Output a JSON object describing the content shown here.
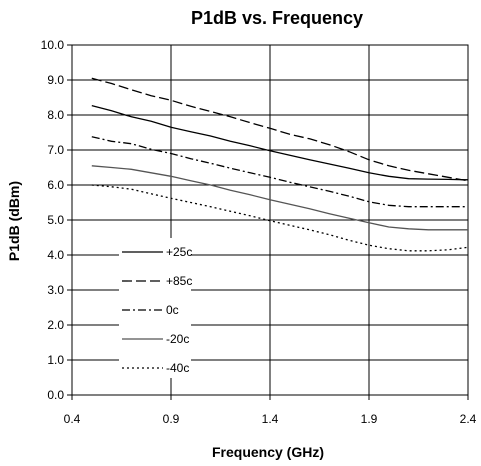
{
  "chart_data": {
    "type": "line",
    "title": "P1dB vs. Frequency",
    "xlabel": "Frequency (GHz)",
    "ylabel": "P1dB (dBm)",
    "xlim": [
      0.4,
      2.4
    ],
    "ylim": [
      0.0,
      10.0
    ],
    "x_ticks": [
      "0.4",
      "0.9",
      "1.4",
      "1.9",
      "2.4"
    ],
    "y_ticks": [
      "0.0",
      "1.0",
      "2.0",
      "3.0",
      "4.0",
      "5.0",
      "6.0",
      "7.0",
      "8.0",
      "9.0",
      "10.0"
    ],
    "grid": true,
    "legend_position": "left-center",
    "series": [
      {
        "name": "+25c",
        "color": "#000000",
        "dash": "solid",
        "x": [
          0.5,
          0.6,
          0.7,
          0.8,
          0.9,
          1.0,
          1.1,
          1.2,
          1.3,
          1.4,
          1.5,
          1.6,
          1.7,
          1.8,
          1.9,
          2.0,
          2.1,
          2.2,
          2.3,
          2.4
        ],
        "y": [
          8.27,
          8.12,
          7.95,
          7.82,
          7.65,
          7.52,
          7.4,
          7.25,
          7.12,
          6.98,
          6.85,
          6.72,
          6.6,
          6.48,
          6.35,
          6.25,
          6.18,
          6.17,
          6.16,
          6.15
        ]
      },
      {
        "name": "+85c",
        "color": "#000000",
        "dash": "dashed",
        "x": [
          0.5,
          0.6,
          0.7,
          0.8,
          0.9,
          1.0,
          1.1,
          1.2,
          1.3,
          1.4,
          1.5,
          1.6,
          1.7,
          1.8,
          1.9,
          2.0,
          2.1,
          2.2,
          2.3,
          2.4
        ],
        "y": [
          9.05,
          8.9,
          8.72,
          8.55,
          8.42,
          8.25,
          8.1,
          7.95,
          7.78,
          7.62,
          7.45,
          7.32,
          7.15,
          6.95,
          6.72,
          6.55,
          6.42,
          6.32,
          6.22,
          6.12
        ]
      },
      {
        "name": "0c",
        "color": "#000000",
        "dash": "dashdot",
        "x": [
          0.5,
          0.6,
          0.7,
          0.8,
          0.9,
          1.0,
          1.1,
          1.2,
          1.3,
          1.4,
          1.5,
          1.6,
          1.7,
          1.8,
          1.9,
          2.0,
          2.1,
          2.2,
          2.3,
          2.4
        ],
        "y": [
          7.38,
          7.25,
          7.18,
          7.02,
          6.9,
          6.75,
          6.62,
          6.48,
          6.35,
          6.22,
          6.08,
          5.95,
          5.82,
          5.68,
          5.52,
          5.42,
          5.38,
          5.38,
          5.38,
          5.38
        ]
      },
      {
        "name": "-20c",
        "color": "#555555",
        "dash": "solid",
        "x": [
          0.5,
          0.6,
          0.7,
          0.8,
          0.9,
          1.0,
          1.1,
          1.2,
          1.3,
          1.4,
          1.5,
          1.6,
          1.7,
          1.8,
          1.9,
          2.0,
          2.1,
          2.2,
          2.3,
          2.4
        ],
        "y": [
          6.55,
          6.5,
          6.45,
          6.35,
          6.25,
          6.12,
          6.0,
          5.85,
          5.72,
          5.58,
          5.45,
          5.32,
          5.18,
          5.05,
          4.92,
          4.8,
          4.75,
          4.72,
          4.72,
          4.72
        ]
      },
      {
        "name": "-40c",
        "color": "#000000",
        "dash": "dotted",
        "x": [
          0.5,
          0.6,
          0.7,
          0.8,
          0.9,
          1.0,
          1.1,
          1.2,
          1.3,
          1.4,
          1.5,
          1.6,
          1.7,
          1.8,
          1.9,
          2.0,
          2.1,
          2.2,
          2.3,
          2.4
        ],
        "y": [
          6.0,
          5.95,
          5.88,
          5.75,
          5.62,
          5.5,
          5.38,
          5.25,
          5.12,
          4.98,
          4.85,
          4.72,
          4.58,
          4.42,
          4.28,
          4.18,
          4.12,
          4.12,
          4.15,
          4.22
        ]
      }
    ]
  }
}
